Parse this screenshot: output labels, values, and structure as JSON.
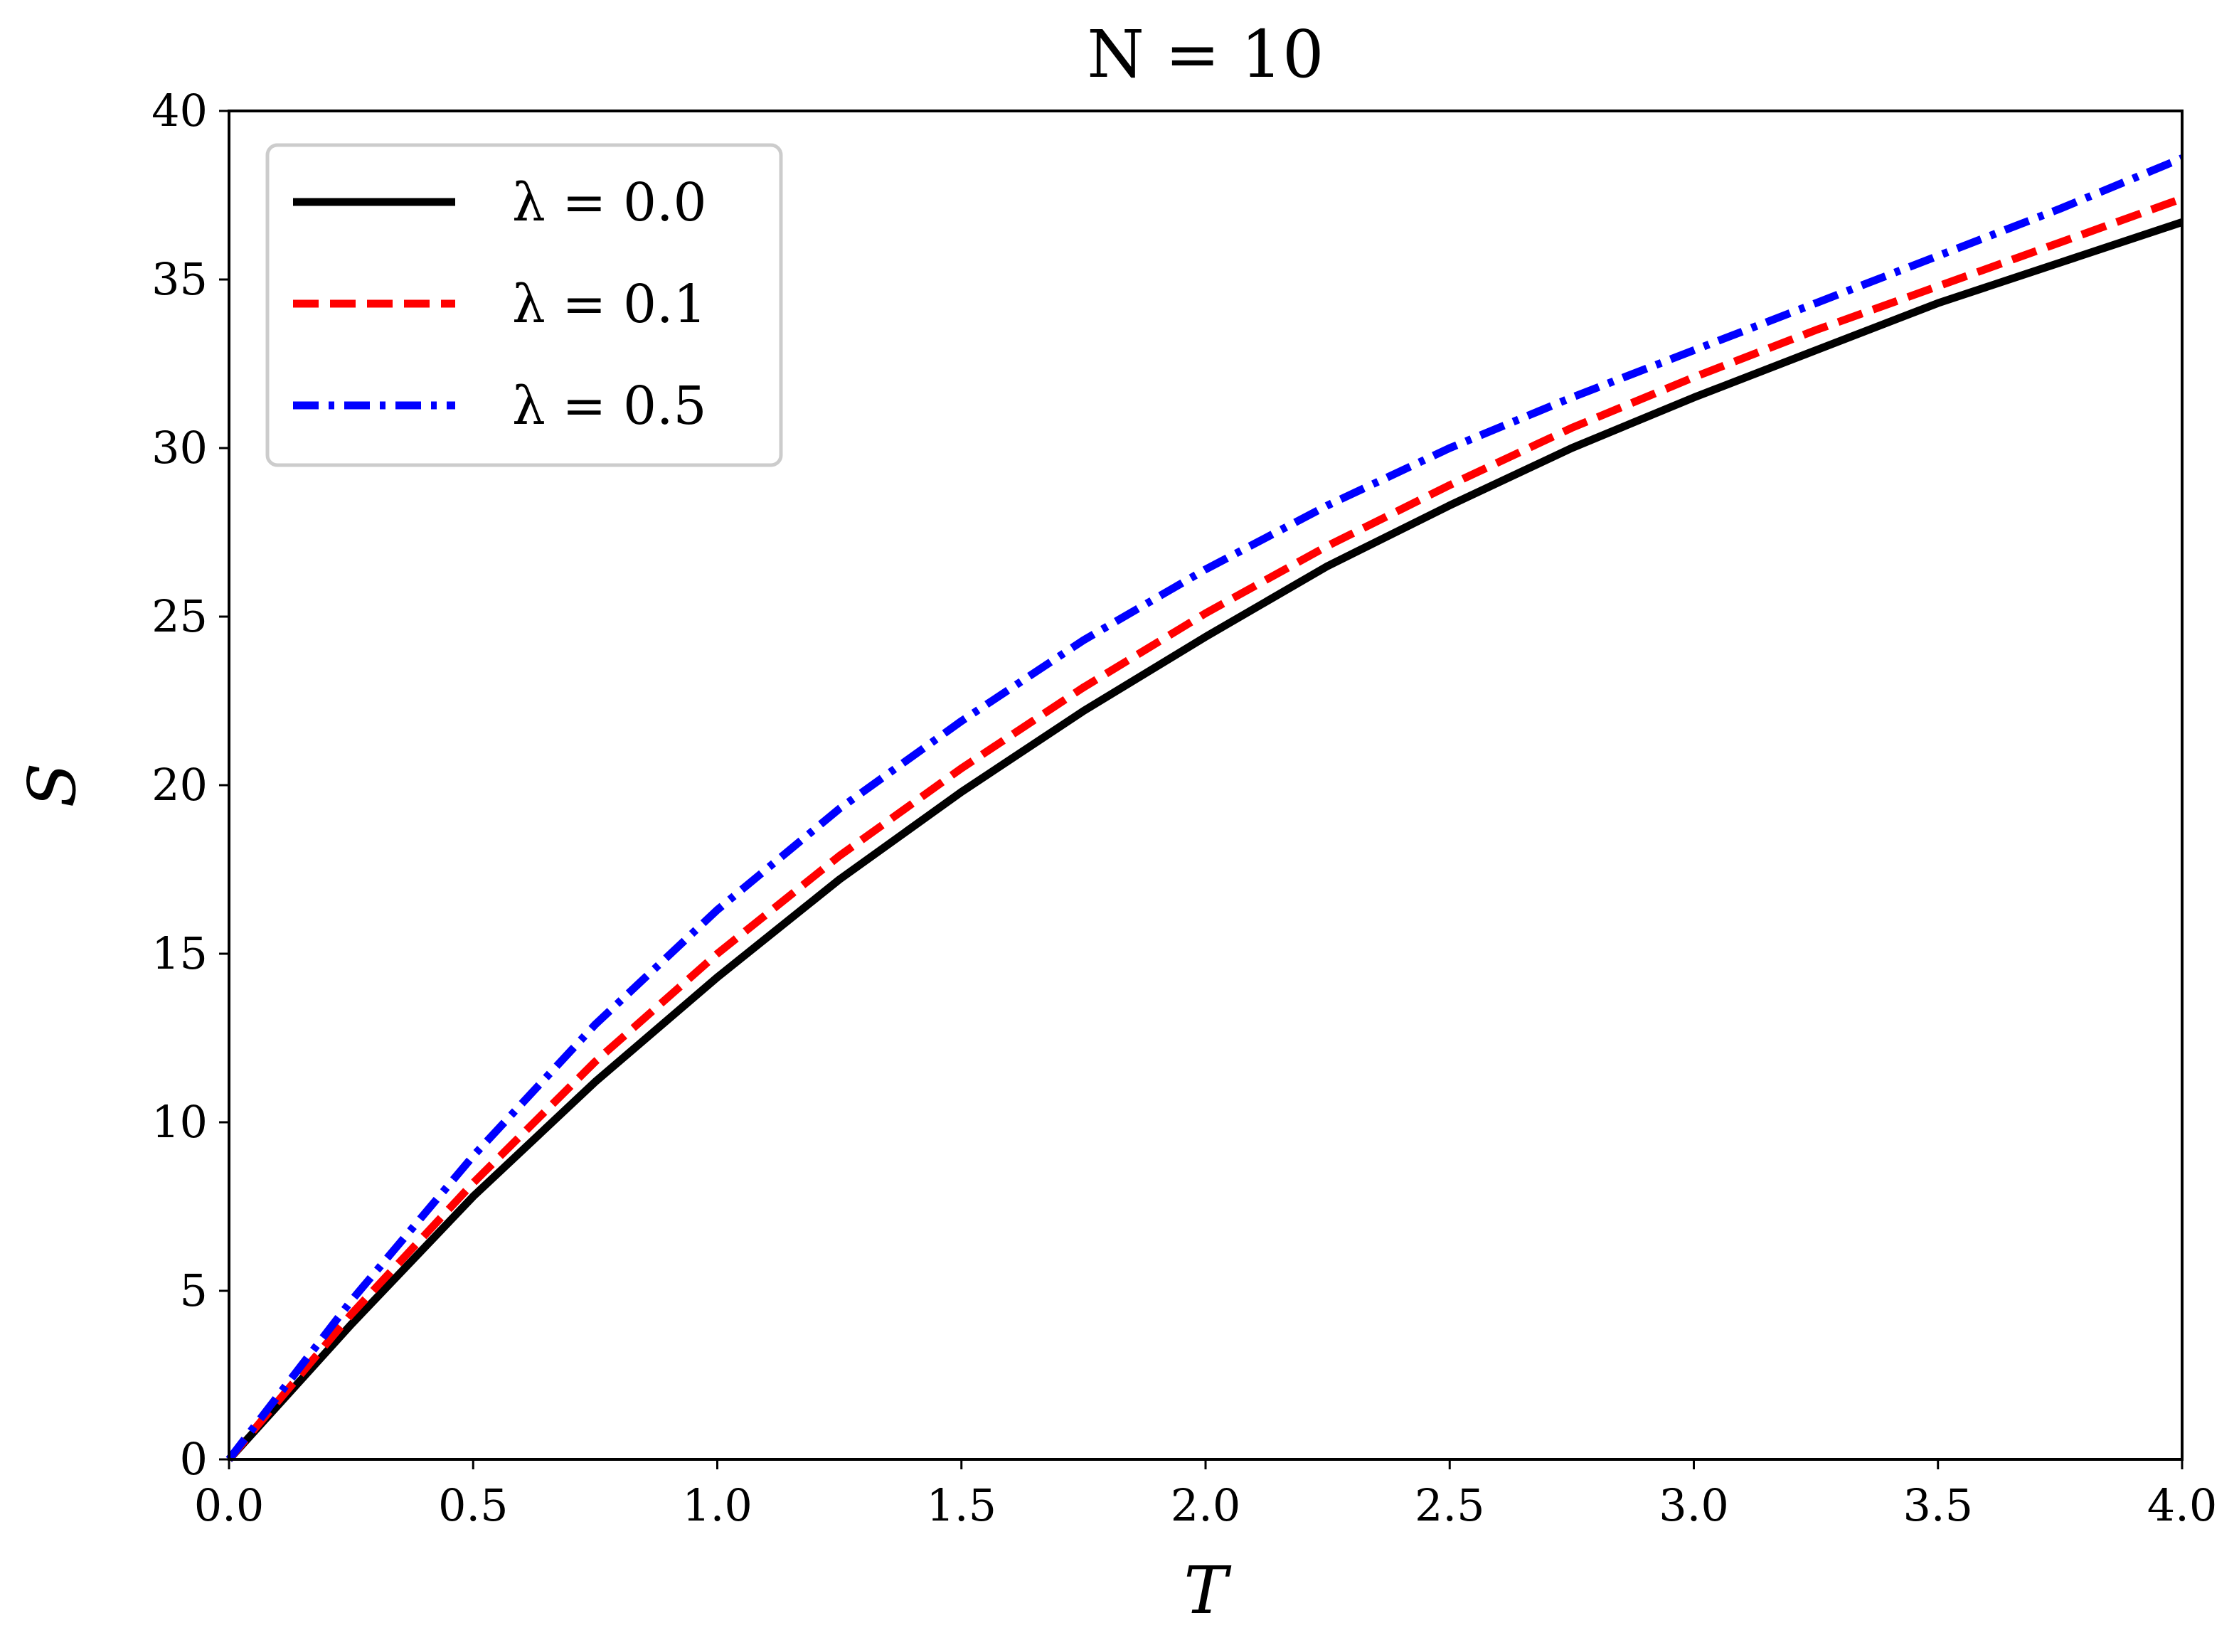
{
  "chart_data": {
    "type": "line",
    "title": "N = 10",
    "xlabel": "T",
    "ylabel": "S",
    "xlim": [
      0,
      4
    ],
    "ylim": [
      0,
      40
    ],
    "xticks": [
      "0.0",
      "0.5",
      "1.0",
      "1.5",
      "2.0",
      "2.5",
      "3.0",
      "3.5",
      "4.0"
    ],
    "yticks": [
      "0",
      "5",
      "10",
      "15",
      "20",
      "25",
      "30",
      "35",
      "40"
    ],
    "grid": false,
    "legend_position": "upper-left",
    "x": [
      0.0,
      0.25,
      0.5,
      0.75,
      1.0,
      1.25,
      1.5,
      1.75,
      2.0,
      2.25,
      2.5,
      2.75,
      3.0,
      3.25,
      3.5,
      3.75,
      4.0
    ],
    "series": [
      {
        "name": "λ = 0.0",
        "color": "#000000",
        "style": "solid",
        "values": [
          0.0,
          4.0,
          7.8,
          11.2,
          14.3,
          17.2,
          19.8,
          22.2,
          24.4,
          26.5,
          28.3,
          30.0,
          31.5,
          32.9,
          34.3,
          35.5,
          36.7
        ]
      },
      {
        "name": "λ = 0.1",
        "color": "#ff0000",
        "style": "dashed",
        "values": [
          0.0,
          4.3,
          8.2,
          11.8,
          15.0,
          17.9,
          20.5,
          22.9,
          25.1,
          27.1,
          28.9,
          30.6,
          32.1,
          33.5,
          34.8,
          36.1,
          37.4
        ]
      },
      {
        "name": "λ = 0.5",
        "color": "#0000ff",
        "style": "dashdot",
        "values": [
          0.0,
          4.7,
          9.0,
          12.9,
          16.3,
          19.3,
          21.9,
          24.3,
          26.4,
          28.3,
          30.0,
          31.5,
          32.9,
          34.3,
          35.7,
          37.1,
          38.6
        ]
      }
    ]
  }
}
